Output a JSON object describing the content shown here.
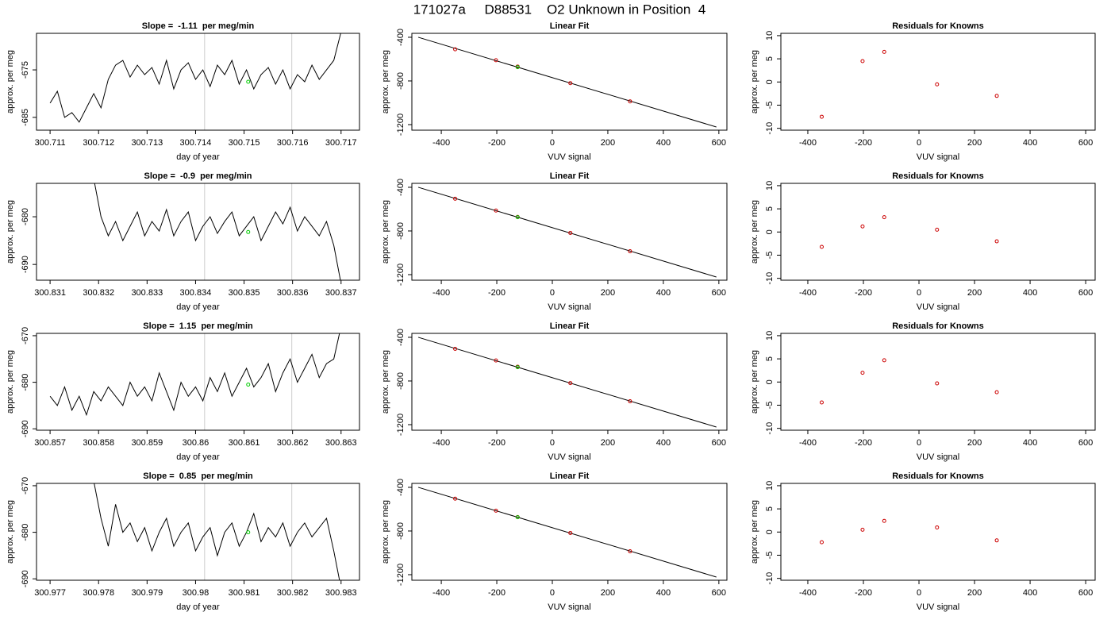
{
  "title": "171027a     D88531    O2 Unknown in Position  4",
  "chart_data": [
    {
      "type": "line",
      "title": "Slope =  -1.11  per meg/min",
      "x_label": "day of year",
      "y_label": "approx. per meg",
      "xlim": [
        300.71072,
        300.71738
      ],
      "ylim": [
        -687.7,
        -667.3
      ],
      "xticks": [
        300.711,
        300.712,
        300.713,
        300.714,
        300.715,
        300.716,
        300.717
      ],
      "yticks": [
        -685,
        -675
      ],
      "vlines": [
        300.714186,
        300.715984
      ],
      "vline_color": "#cccccc",
      "highlight": {
        "x": 300.715085,
        "y": -677.5,
        "color": "#00cc00"
      },
      "series": [
        {
          "color": "#000000",
          "x": [
            300.711,
            300.71115,
            300.7113,
            300.71145,
            300.7116,
            300.71175,
            300.7119,
            300.71205,
            300.7122,
            300.71235,
            300.7125,
            300.71265,
            300.7128,
            300.71295,
            300.7131,
            300.71325,
            300.7134,
            300.71355,
            300.7137,
            300.71385,
            300.714,
            300.71415,
            300.7143,
            300.71445,
            300.7146,
            300.71475,
            300.7149,
            300.71505,
            300.7152,
            300.71535,
            300.7155,
            300.71565,
            300.7158,
            300.71595,
            300.7161,
            300.71625,
            300.7164,
            300.71655,
            300.7167,
            300.71685,
            300.717
          ],
          "values": [
            -682,
            -679.5,
            -685,
            -684,
            -686,
            -683,
            -680,
            -683,
            -677,
            -674,
            -673,
            -676.5,
            -674,
            -676,
            -674.5,
            -678,
            -673,
            -679,
            -675,
            -673.5,
            -677,
            -675,
            -678.5,
            -674,
            -676,
            -673,
            -678,
            -675,
            -679,
            -676,
            -674.5,
            -678,
            -675,
            -679,
            -676,
            -677.5,
            -674,
            -677,
            -675,
            -673,
            -667
          ]
        }
      ]
    },
    {
      "type": "scatter",
      "title": "Linear Fit",
      "x_label": "VUV signal",
      "y_label": "approx. per meg",
      "xlim": [
        -506,
        629
      ],
      "ylim": [
        -1251,
        -364
      ],
      "xticks": [
        -400,
        -200,
        0,
        200,
        400,
        600
      ],
      "yticks": [
        -1200,
        -800,
        -400
      ],
      "line_x": [
        -483,
        591
      ],
      "line_y": [
        -400,
        -1222
      ],
      "line_color": "#000000",
      "highlight": {
        "x": -125,
        "y": -674,
        "color": "#00cc00"
      },
      "series": [
        {
          "color": "#cc0000",
          "x": [
            -350,
            -203,
            -125,
            65,
            280
          ],
          "values": [
            -510,
            -610,
            -668,
            -820,
            -987
          ]
        }
      ]
    },
    {
      "type": "scatter",
      "title": "Residuals for Knowns",
      "x_label": "VUV signal",
      "y_label": "approx. per meg",
      "xlim": [
        -497,
        634
      ],
      "ylim": [
        -10.4,
        10.5
      ],
      "xticks": [
        -400,
        -200,
        0,
        200,
        400,
        600
      ],
      "yticks": [
        -10,
        -5,
        0,
        5,
        10
      ],
      "series": [
        {
          "color": "#cc0000",
          "x": [
            -350,
            -203,
            -125,
            65,
            280
          ],
          "values": [
            -7.5,
            4.5,
            6.5,
            -0.5,
            -3
          ]
        }
      ]
    },
    {
      "type": "line",
      "title": "Slope =  -0.9  per meg/min",
      "x_label": "day of year",
      "y_label": "approx. per meg",
      "xlim": [
        300.83072,
        300.83738
      ],
      "ylim": [
        -693.3,
        -673
      ],
      "xticks": [
        300.831,
        300.832,
        300.833,
        300.834,
        300.835,
        300.836,
        300.837
      ],
      "yticks": [
        -690,
        -680
      ],
      "vlines": [
        300.834186,
        300.835984
      ],
      "vline_color": "#cccccc",
      "highlight": {
        "x": 300.835085,
        "y": -683.2,
        "color": "#00cc00"
      },
      "series": [
        {
          "color": "#000000",
          "x": [
            300.8319,
            300.83205,
            300.8322,
            300.83235,
            300.8325,
            300.83265,
            300.8328,
            300.83295,
            300.8331,
            300.83325,
            300.8334,
            300.83355,
            300.8337,
            300.83385,
            300.834,
            300.83415,
            300.8343,
            300.83445,
            300.8346,
            300.83475,
            300.8349,
            300.83505,
            300.8352,
            300.83535,
            300.8355,
            300.83565,
            300.8358,
            300.83595,
            300.8361,
            300.83625,
            300.8364,
            300.83655,
            300.8367,
            300.83685,
            300.837
          ],
          "values": [
            -672,
            -680,
            -684,
            -681,
            -685,
            -682,
            -679,
            -684,
            -681,
            -683,
            -678.5,
            -684,
            -681,
            -679,
            -685,
            -682,
            -680,
            -683.5,
            -681,
            -679,
            -684,
            -682,
            -680,
            -685,
            -682,
            -679,
            -681.5,
            -678,
            -683,
            -680,
            -682,
            -684,
            -681,
            -686,
            -694
          ]
        }
      ]
    },
    {
      "type": "scatter",
      "title": "Linear Fit",
      "x_label": "VUV signal",
      "y_label": "approx. per meg",
      "xlim": [
        -506,
        629
      ],
      "ylim": [
        -1251,
        -364
      ],
      "xticks": [
        -400,
        -200,
        0,
        200,
        400,
        600
      ],
      "yticks": [
        -1200,
        -800,
        -400
      ],
      "line_x": [
        -483,
        591
      ],
      "line_y": [
        -400,
        -1222
      ],
      "line_color": "#000000",
      "highlight": {
        "x": -125,
        "y": -674,
        "color": "#00cc00"
      },
      "series": [
        {
          "color": "#cc0000",
          "x": [
            -350,
            -203,
            -125,
            65,
            280
          ],
          "values": [
            -505,
            -613,
            -671,
            -818,
            -986
          ]
        }
      ]
    },
    {
      "type": "scatter",
      "title": "Residuals for Knowns",
      "x_label": "VUV signal",
      "y_label": "approx. per meg",
      "xlim": [
        -497,
        634
      ],
      "ylim": [
        -10.4,
        10.5
      ],
      "xticks": [
        -400,
        -200,
        0,
        200,
        400,
        600
      ],
      "yticks": [
        -10,
        -5,
        0,
        5,
        10
      ],
      "series": [
        {
          "color": "#cc0000",
          "x": [
            -350,
            -203,
            -125,
            65,
            280
          ],
          "values": [
            -3.2,
            1.2,
            3.2,
            0.5,
            -2
          ]
        }
      ]
    },
    {
      "type": "line",
      "title": "Slope =  1.15  per meg/min",
      "x_label": "day of year",
      "y_label": "approx. per meg",
      "xlim": [
        300.85672,
        300.86338
      ],
      "ylim": [
        -690.3,
        -669.5
      ],
      "xticks": [
        300.857,
        300.858,
        300.859,
        300.86,
        300.861,
        300.862,
        300.863
      ],
      "yticks": [
        -690,
        -680,
        -670
      ],
      "vlines": [
        300.860186,
        300.861984
      ],
      "vline_color": "#cccccc",
      "highlight": {
        "x": 300.861085,
        "y": -680.5,
        "color": "#00cc00"
      },
      "series": [
        {
          "color": "#000000",
          "x": [
            300.857,
            300.85715,
            300.8573,
            300.85745,
            300.8576,
            300.85775,
            300.8579,
            300.85805,
            300.8582,
            300.85835,
            300.8585,
            300.85865,
            300.8588,
            300.85895,
            300.8591,
            300.85925,
            300.8594,
            300.85955,
            300.8597,
            300.85985,
            300.86,
            300.86015,
            300.8603,
            300.86045,
            300.8606,
            300.86075,
            300.8609,
            300.86105,
            300.8612,
            300.86135,
            300.8615,
            300.86165,
            300.8618,
            300.86195,
            300.8621,
            300.86225,
            300.8624,
            300.86255,
            300.8627,
            300.86285,
            300.863
          ],
          "values": [
            -683,
            -685,
            -681,
            -686,
            -683,
            -687,
            -682,
            -684,
            -681,
            -683,
            -685,
            -680,
            -683,
            -681,
            -684,
            -678,
            -682,
            -686,
            -680,
            -683,
            -681,
            -684,
            -679,
            -682,
            -678,
            -683,
            -680,
            -677,
            -681,
            -679,
            -676,
            -682,
            -678,
            -675,
            -680,
            -677,
            -674,
            -679,
            -676,
            -675,
            -668
          ]
        }
      ]
    },
    {
      "type": "scatter",
      "title": "Linear Fit",
      "x_label": "VUV signal",
      "y_label": "approx. per meg",
      "xlim": [
        -506,
        629
      ],
      "ylim": [
        -1251,
        -364
      ],
      "xticks": [
        -400,
        -200,
        0,
        200,
        400,
        600
      ],
      "yticks": [
        -1200,
        -800,
        -400
      ],
      "line_x": [
        -483,
        591
      ],
      "line_y": [
        -400,
        -1222
      ],
      "line_color": "#000000",
      "highlight": {
        "x": -125,
        "y": -674,
        "color": "#00cc00"
      },
      "series": [
        {
          "color": "#cc0000",
          "x": [
            -350,
            -203,
            -125,
            65,
            280
          ],
          "values": [
            -506,
            -612,
            -669,
            -819,
            -986
          ]
        }
      ]
    },
    {
      "type": "scatter",
      "title": "Residuals for Knowns",
      "x_label": "VUV signal",
      "y_label": "approx. per meg",
      "xlim": [
        -497,
        634
      ],
      "ylim": [
        -10.4,
        10.5
      ],
      "xticks": [
        -400,
        -200,
        0,
        200,
        400,
        600
      ],
      "yticks": [
        -10,
        -5,
        0,
        5,
        10
      ],
      "series": [
        {
          "color": "#cc0000",
          "x": [
            -350,
            -203,
            -125,
            65,
            280
          ],
          "values": [
            -4.4,
            2,
            4.7,
            -0.3,
            -2.2
          ]
        }
      ]
    },
    {
      "type": "line",
      "title": "Slope =  0.85  per meg/min",
      "x_label": "day of year",
      "y_label": "approx. per meg",
      "xlim": [
        300.97672,
        300.98338
      ],
      "ylim": [
        -690.3,
        -669.5
      ],
      "xticks": [
        300.977,
        300.978,
        300.979,
        300.98,
        300.981,
        300.982,
        300.983
      ],
      "yticks": [
        -690,
        -680,
        -670
      ],
      "vlines": [
        300.980186,
        300.981984
      ],
      "vline_color": "#cccccc",
      "highlight": {
        "x": 300.981085,
        "y": -680,
        "color": "#00cc00"
      },
      "series": [
        {
          "color": "#000000",
          "x": [
            300.9779,
            300.97805,
            300.9782,
            300.97835,
            300.9785,
            300.97865,
            300.9788,
            300.97895,
            300.9791,
            300.97925,
            300.9794,
            300.97955,
            300.9797,
            300.97985,
            300.98,
            300.98015,
            300.9803,
            300.98045,
            300.9806,
            300.98075,
            300.9809,
            300.98105,
            300.9812,
            300.98135,
            300.9815,
            300.98165,
            300.9818,
            300.98195,
            300.9821,
            300.98225,
            300.9824,
            300.98255,
            300.9827,
            300.98285,
            300.983
          ],
          "values": [
            -669,
            -677,
            -683,
            -674,
            -680,
            -678,
            -682,
            -679,
            -684,
            -680,
            -677,
            -683,
            -680,
            -678,
            -684,
            -681,
            -679,
            -685,
            -680,
            -678,
            -683,
            -680,
            -676,
            -682,
            -679,
            -681,
            -678,
            -683,
            -680,
            -678,
            -681,
            -679,
            -677,
            -684,
            -692
          ]
        }
      ]
    },
    {
      "type": "scatter",
      "title": "Linear Fit",
      "x_label": "VUV signal",
      "y_label": "approx. per meg",
      "xlim": [
        -506,
        629
      ],
      "ylim": [
        -1251,
        -364
      ],
      "xticks": [
        -400,
        -200,
        0,
        200,
        400,
        600
      ],
      "yticks": [
        -1200,
        -800,
        -400
      ],
      "line_x": [
        -483,
        591
      ],
      "line_y": [
        -400,
        -1222
      ],
      "line_color": "#000000",
      "highlight": {
        "x": -125,
        "y": -674,
        "color": "#00cc00"
      },
      "series": [
        {
          "color": "#cc0000",
          "x": [
            -350,
            -203,
            -125,
            65,
            280
          ],
          "values": [
            -504,
            -614,
            -672,
            -818,
            -986
          ]
        }
      ]
    },
    {
      "type": "scatter",
      "title": "Residuals for Knowns",
      "x_label": "VUV signal",
      "y_label": "approx. per meg",
      "xlim": [
        -497,
        634
      ],
      "ylim": [
        -10.4,
        10.5
      ],
      "xticks": [
        -400,
        -200,
        0,
        200,
        400,
        600
      ],
      "yticks": [
        -10,
        -5,
        0,
        5,
        10
      ],
      "series": [
        {
          "color": "#cc0000",
          "x": [
            -350,
            -203,
            -125,
            65,
            280
          ],
          "values": [
            -2.2,
            0.5,
            2.4,
            1,
            -1.8
          ]
        }
      ]
    }
  ]
}
